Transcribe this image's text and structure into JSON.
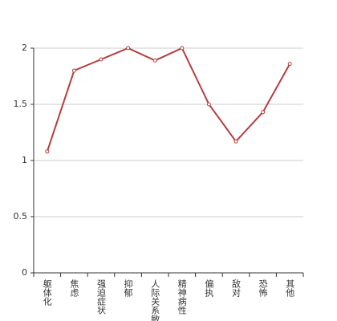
{
  "chart_data": {
    "type": "line",
    "categories": [
      "躯体化",
      "焦虑",
      "强迫症状",
      "抑郁",
      "人际关系敏感",
      "精神病性",
      "偏执",
      "敌对",
      "恐怖",
      "其他"
    ],
    "values": [
      1.08,
      1.8,
      1.9,
      2.0,
      1.89,
      2.0,
      1.5,
      1.17,
      1.43,
      1.86
    ],
    "color": "#b83b3b",
    "ylim": [
      0,
      2
    ],
    "yticks": [
      0,
      0.5,
      1,
      1.5,
      2
    ],
    "grid": true
  }
}
